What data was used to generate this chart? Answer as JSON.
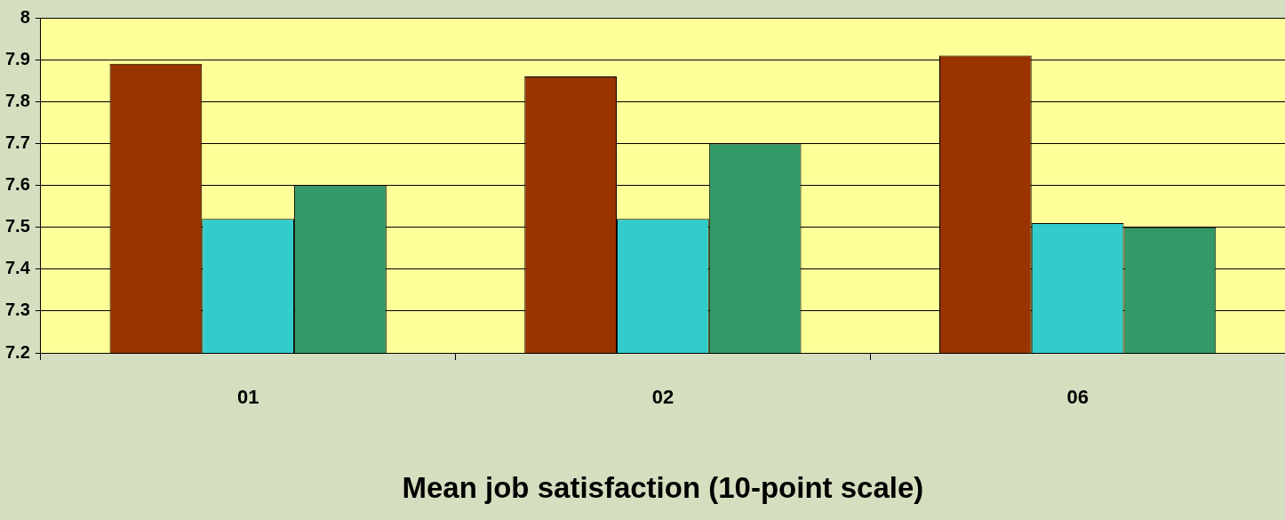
{
  "chart_data": {
    "type": "bar",
    "xlabel": "Mean job satisfaction (10-point scale)",
    "categories": [
      "01",
      "02",
      "06"
    ],
    "series": [
      {
        "color": "#993300",
        "values": [
          7.89,
          7.86,
          7.91
        ]
      },
      {
        "color": "#33cccc",
        "values": [
          7.52,
          7.52,
          7.51
        ]
      },
      {
        "color": "#339966",
        "values": [
          7.6,
          7.7,
          7.5
        ]
      }
    ],
    "ylim": [
      7.2,
      8
    ],
    "yticks": [
      7.2,
      7.3,
      7.4,
      7.5,
      7.6,
      7.7,
      7.8,
      7.9,
      8
    ],
    "grid": "y",
    "legend": false
  }
}
